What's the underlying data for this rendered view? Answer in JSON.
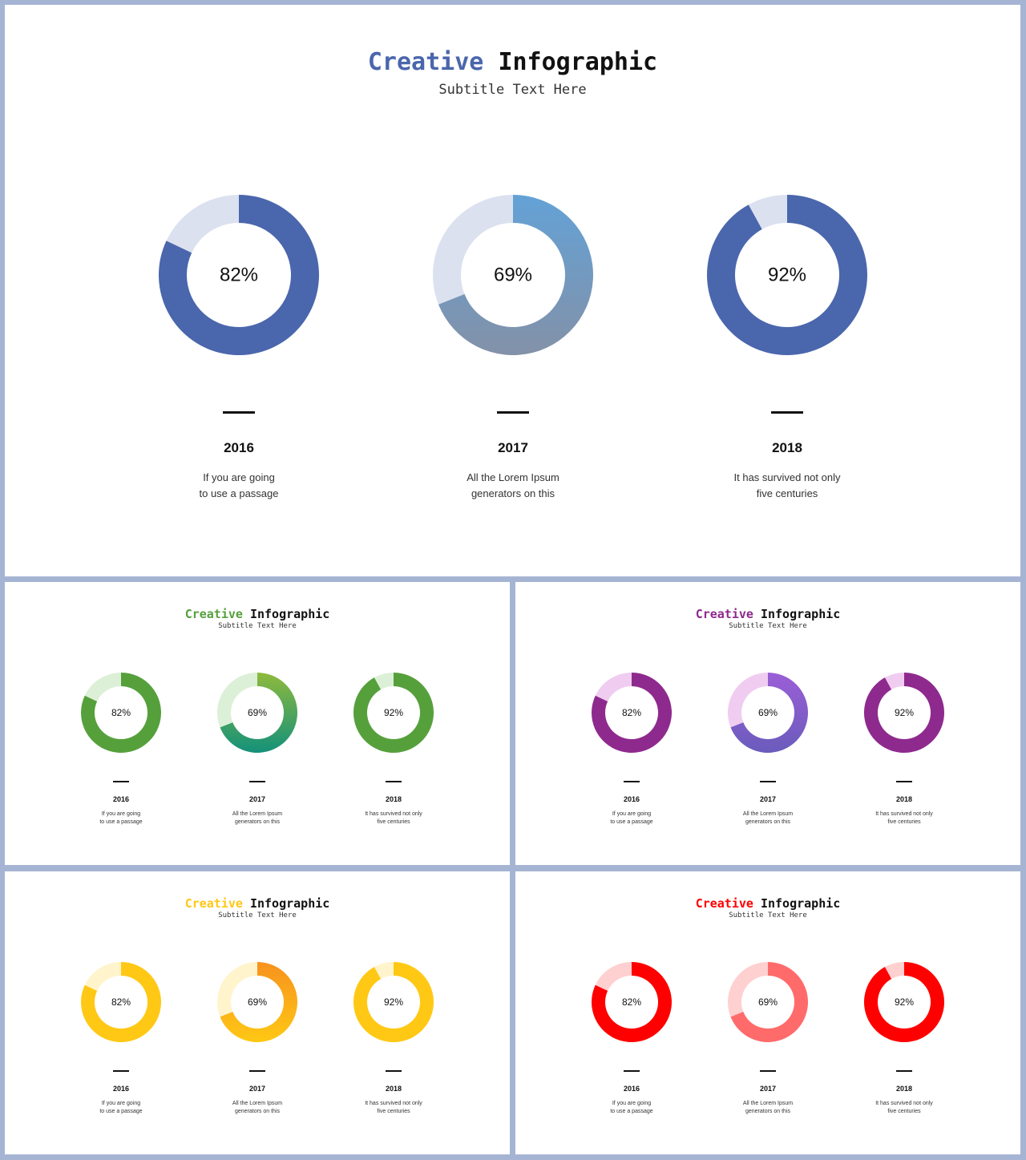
{
  "slides": [
    {
      "title_accent": "Creative",
      "title_rest": "Infographic",
      "subtitle": "Subtitle Text Here",
      "accent_color": "#4a66ac",
      "chart_data": {
        "type": "donut",
        "title": "Creative Infographic",
        "subtitle": "Subtitle Text Here",
        "items": [
          {
            "value": 82,
            "label": "82%",
            "year": "2016",
            "desc1": "If you are going",
            "desc2": "to use a passage",
            "color_start": "#4a66ac",
            "color_end": "#4a66ac",
            "track": "#dce1f0"
          },
          {
            "value": 69,
            "label": "69%",
            "year": "2017",
            "desc1": "All the Lorem Ipsum",
            "desc2": "generators on this",
            "color_start": "#63a2d6",
            "color_end": "#8391a8",
            "track": "#dce1f0"
          },
          {
            "value": 92,
            "label": "92%",
            "year": "2018",
            "desc1": "It has survived not only",
            "desc2": "five centuries",
            "color_start": "#4a66ac",
            "color_end": "#4a66ac",
            "track": "#dce1f0"
          }
        ]
      }
    },
    {
      "title_accent": "Creative",
      "title_rest": "Infographic",
      "subtitle": "Subtitle Text Here",
      "accent_color": "#56a03c",
      "chart_data": {
        "type": "donut",
        "title": "Creative Infographic",
        "subtitle": "Subtitle Text Here",
        "items": [
          {
            "value": 82,
            "label": "82%",
            "year": "2016",
            "desc1": "If you are going",
            "desc2": "to use a passage",
            "color_start": "#56a03c",
            "color_end": "#56a03c",
            "track": "#dcf0d8"
          },
          {
            "value": 69,
            "label": "69%",
            "year": "2017",
            "desc1": "All the Lorem Ipsum",
            "desc2": "generators on this",
            "color_start": "#8fba3c",
            "color_end": "#13917a",
            "track": "#dcf0d8"
          },
          {
            "value": 92,
            "label": "92%",
            "year": "2018",
            "desc1": "It has survived not only",
            "desc2": "five centuries",
            "color_start": "#56a03c",
            "color_end": "#56a03c",
            "track": "#dcf0d8"
          }
        ]
      }
    },
    {
      "title_accent": "Creative",
      "title_rest": "Infographic",
      "subtitle": "Subtitle Text Here",
      "accent_color": "#8e2a8e",
      "chart_data": {
        "type": "donut",
        "title": "Creative Infographic",
        "subtitle": "Subtitle Text Here",
        "items": [
          {
            "value": 82,
            "label": "82%",
            "year": "2016",
            "desc1": "If you are going",
            "desc2": "to use a passage",
            "color_start": "#8e2a8e",
            "color_end": "#8e2a8e",
            "track": "#f0cdf0"
          },
          {
            "value": 69,
            "label": "69%",
            "year": "2017",
            "desc1": "All the Lorem Ipsum",
            "desc2": "generators on this",
            "color_start": "#9b5ed6",
            "color_end": "#6a5cbc",
            "track": "#f0cdf0"
          },
          {
            "value": 92,
            "label": "92%",
            "year": "2018",
            "desc1": "It has survived not only",
            "desc2": "five centuries",
            "color_start": "#8e2a8e",
            "color_end": "#8e2a8e",
            "track": "#f0cdf0"
          }
        ]
      }
    },
    {
      "title_accent": "Creative",
      "title_rest": "Infographic",
      "subtitle": "Subtitle Text Here",
      "accent_color": "#ffc814",
      "chart_data": {
        "type": "donut",
        "title": "Creative Infographic",
        "subtitle": "Subtitle Text Here",
        "items": [
          {
            "value": 82,
            "label": "82%",
            "year": "2016",
            "desc1": "If you are going",
            "desc2": "to use a passage",
            "color_start": "#ffc814",
            "color_end": "#ffc814",
            "track": "#fff4cc"
          },
          {
            "value": 69,
            "label": "69%",
            "year": "2017",
            "desc1": "All the Lorem Ipsum",
            "desc2": "generators on this",
            "color_start": "#f7921e",
            "color_end": "#ffc814",
            "track": "#fff4cc"
          },
          {
            "value": 92,
            "label": "92%",
            "year": "2018",
            "desc1": "It has survived not only",
            "desc2": "five centuries",
            "color_start": "#ffc814",
            "color_end": "#ffc814",
            "track": "#fff4cc"
          }
        ]
      }
    },
    {
      "title_accent": "Creative",
      "title_rest": "Infographic",
      "subtitle": "Subtitle Text Here",
      "accent_color": "#ff0000",
      "chart_data": {
        "type": "donut",
        "title": "Creative Infographic",
        "subtitle": "Subtitle Text Here",
        "items": [
          {
            "value": 82,
            "label": "82%",
            "year": "2016",
            "desc1": "If you are going",
            "desc2": "to use a passage",
            "color_start": "#ff0000",
            "color_end": "#ff0000",
            "track": "#ffd0d0"
          },
          {
            "value": 69,
            "label": "69%",
            "year": "2017",
            "desc1": "All the Lorem Ipsum",
            "desc2": "generators on this",
            "color_start": "#ff6b6b",
            "color_end": "#ff6b6b",
            "track": "#ffd0d0"
          },
          {
            "value": 92,
            "label": "92%",
            "year": "2018",
            "desc1": "It has survived not only",
            "desc2": "five centuries",
            "color_start": "#ff0000",
            "color_end": "#ff0000",
            "track": "#ffd0d0"
          }
        ]
      }
    }
  ]
}
